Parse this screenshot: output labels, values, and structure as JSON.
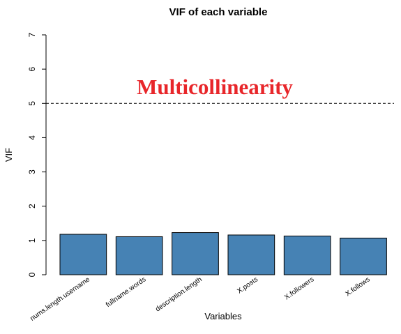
{
  "chart_data": {
    "type": "bar",
    "title": "VIF of each variable",
    "xlabel": "Variables",
    "ylabel": "VIF",
    "categories": [
      "nums.length.username",
      "fullname.words",
      "description.length",
      "X.posts",
      "X.followers",
      "X.follows"
    ],
    "values": [
      1.18,
      1.11,
      1.23,
      1.16,
      1.13,
      1.07
    ],
    "ylim": [
      0,
      7
    ],
    "yticks": [
      "0",
      "1",
      "2",
      "3",
      "4",
      "5",
      "6",
      "7"
    ],
    "bar_color": "#4682B4",
    "grid": false,
    "reference_line": {
      "value": 5,
      "style": "dashed"
    },
    "annotation": {
      "text": "Multicollinearity",
      "color": "#E8262A"
    }
  }
}
